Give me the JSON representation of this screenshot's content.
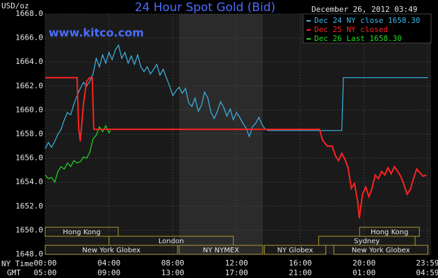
{
  "chart_data": {
    "type": "line",
    "title": "24 Hour Spot Gold (Bid)",
    "y_unit": "USD/oz",
    "watermark": "www.kitco.com",
    "timestamp": "December 26, 2012 03:49",
    "xtick_row_labels": [
      "NY Time",
      "GMT"
    ],
    "xlim": [
      0,
      24.2
    ],
    "xticks": [
      {
        "value": 0,
        "label": "00:00"
      },
      {
        "value": 4,
        "label": "04:00"
      },
      {
        "value": 8,
        "label": "08:00"
      },
      {
        "value": 12,
        "label": "12:00"
      },
      {
        "value": 16,
        "label": "16:00"
      },
      {
        "value": 20,
        "label": "20:00"
      },
      {
        "value": 23.98,
        "label": "23:59"
      }
    ],
    "xticks_gmt": [
      {
        "value": 0,
        "label": "05:00"
      },
      {
        "value": 4,
        "label": "09:00"
      },
      {
        "value": 8,
        "label": "13:00"
      },
      {
        "value": 12,
        "label": "17:00"
      },
      {
        "value": 16,
        "label": "21:00"
      },
      {
        "value": 20,
        "label": "01:00"
      },
      {
        "value": 23.98,
        "label": "04:59"
      }
    ],
    "ylim": [
      1648,
      1668
    ],
    "yticks": [
      {
        "value": 1648,
        "label": "1648.0"
      },
      {
        "value": 1650,
        "label": "1650.0"
      },
      {
        "value": 1652,
        "label": "1652.0"
      },
      {
        "value": 1654,
        "label": "1654.0"
      },
      {
        "value": 1656,
        "label": "1656.0"
      },
      {
        "value": 1658,
        "label": "1658.0"
      },
      {
        "value": 1660,
        "label": "1660.0"
      },
      {
        "value": 1662,
        "label": "1662.0"
      },
      {
        "value": 1664,
        "label": "1664.0"
      },
      {
        "value": 1666,
        "label": "1666.0"
      },
      {
        "value": 1668,
        "label": "1668.0"
      }
    ],
    "grid": true,
    "legend": "top-right",
    "session_rows": [
      [
        {
          "name": "Hong Kong",
          "start": 0,
          "end": 4.58
        },
        {
          "name": "Hong Kong",
          "start": 19.72,
          "end": 23.47
        }
      ],
      [
        {
          "name": "London",
          "start": 4.0,
          "end": 11.8
        },
        {
          "name": "Sydney",
          "start": 17.15,
          "end": 23.2
        }
      ],
      [
        {
          "name": "New York Globex",
          "start": 0,
          "end": 8.3
        },
        {
          "name": "NY NYMEX",
          "start": 8.4,
          "end": 13.65
        },
        {
          "name": "NY Globex",
          "start": 13.75,
          "end": 17.6
        },
        {
          "name": "New York Globex",
          "start": 18.1,
          "end": 24
        }
      ]
    ],
    "series": [
      {
        "name": "Dec 24 NY close 1658.30",
        "color": "#3cb8ea",
        "x": [
          0,
          0.2,
          0.4,
          0.6,
          0.8,
          1.0,
          1.2,
          1.4,
          1.6,
          1.8,
          2.0,
          2.2,
          2.4,
          2.6,
          2.8,
          3.0,
          3.2,
          3.4,
          3.6,
          3.8,
          4.0,
          4.2,
          4.4,
          4.6,
          4.8,
          5.0,
          5.2,
          5.4,
          5.6,
          5.8,
          6.0,
          6.2,
          6.4,
          6.6,
          6.8,
          7.0,
          7.2,
          7.4,
          7.6,
          7.8,
          8.0,
          8.2,
          8.4,
          8.6,
          8.8,
          9.0,
          9.2,
          9.4,
          9.6,
          9.8,
          10.0,
          10.2,
          10.4,
          10.6,
          10.8,
          11.0,
          11.2,
          11.4,
          11.6,
          11.8,
          12.0,
          12.2,
          12.4,
          12.6,
          12.8,
          13.0,
          13.2,
          13.4,
          13.6,
          13.8,
          14.0,
          18.6,
          18.7,
          24
        ],
        "values": [
          1656.8,
          1657.3,
          1656.9,
          1657.4,
          1658.0,
          1658.4,
          1659.2,
          1659.8,
          1659.6,
          1660.5,
          1661.2,
          1661.8,
          1662.3,
          1662.0,
          1662.4,
          1663.0,
          1664.3,
          1663.6,
          1664.6,
          1663.9,
          1664.8,
          1664.2,
          1665.0,
          1665.4,
          1664.3,
          1664.8,
          1663.9,
          1664.5,
          1663.8,
          1664.6,
          1663.6,
          1663.2,
          1663.6,
          1663.0,
          1663.4,
          1663.8,
          1662.9,
          1663.4,
          1662.7,
          1662.0,
          1661.2,
          1661.6,
          1661.9,
          1661.4,
          1661.8,
          1660.6,
          1660.3,
          1661.0,
          1659.9,
          1660.4,
          1661.5,
          1661.0,
          1659.8,
          1659.3,
          1659.9,
          1660.7,
          1660.2,
          1659.5,
          1660.1,
          1659.2,
          1659.8,
          1659.4,
          1658.9,
          1658.5,
          1657.8,
          1658.6,
          1658.9,
          1659.4,
          1658.8,
          1658.4,
          1658.3,
          1658.3,
          1662.7,
          1662.7
        ]
      },
      {
        "name": "Dec 25 NY closed",
        "color": "#ff2222",
        "x": [
          0,
          2.0,
          2.1,
          2.2,
          2.4,
          2.6,
          2.8,
          2.95,
          3.05,
          17.2,
          17.4,
          17.7,
          18.0,
          18.2,
          18.4,
          18.6,
          18.8,
          19.0,
          19.2,
          19.4,
          19.6,
          19.7,
          19.9,
          20.1,
          20.3,
          20.5,
          20.7,
          20.9,
          21.1,
          21.3,
          21.5,
          21.7,
          21.9,
          22.1,
          22.3,
          22.5,
          22.7,
          22.9,
          23.1,
          23.3,
          23.5,
          23.7,
          23.9
        ],
        "values": [
          1662.7,
          1662.7,
          1658.5,
          1657.4,
          1660.5,
          1662.4,
          1662.7,
          1662.7,
          1658.4,
          1658.4,
          1657.5,
          1657.0,
          1657.0,
          1656.2,
          1655.8,
          1656.4,
          1655.9,
          1655.2,
          1653.5,
          1653.9,
          1652.4,
          1651.0,
          1653.0,
          1653.6,
          1652.8,
          1653.5,
          1654.6,
          1654.3,
          1654.9,
          1654.6,
          1655.2,
          1654.7,
          1655.3,
          1654.9,
          1654.5,
          1653.8,
          1653.0,
          1653.4,
          1654.3,
          1655.1,
          1654.8,
          1654.5,
          1654.6
        ]
      },
      {
        "name": "Dec 26 Last 1658.30",
        "color": "#22dd22",
        "x": [
          0,
          0.2,
          0.4,
          0.6,
          0.8,
          1.0,
          1.2,
          1.4,
          1.6,
          1.8,
          2.0,
          2.2,
          2.4,
          2.6,
          2.8,
          3.0,
          3.2,
          3.4,
          3.6,
          3.8,
          4.0,
          4.1
        ],
        "values": [
          1654.6,
          1654.3,
          1654.4,
          1654.0,
          1654.9,
          1655.3,
          1655.1,
          1655.6,
          1655.3,
          1655.8,
          1655.6,
          1655.7,
          1656.1,
          1656.0,
          1656.5,
          1657.6,
          1657.9,
          1658.6,
          1658.2,
          1658.7,
          1658.1,
          1658.3
        ]
      }
    ]
  }
}
